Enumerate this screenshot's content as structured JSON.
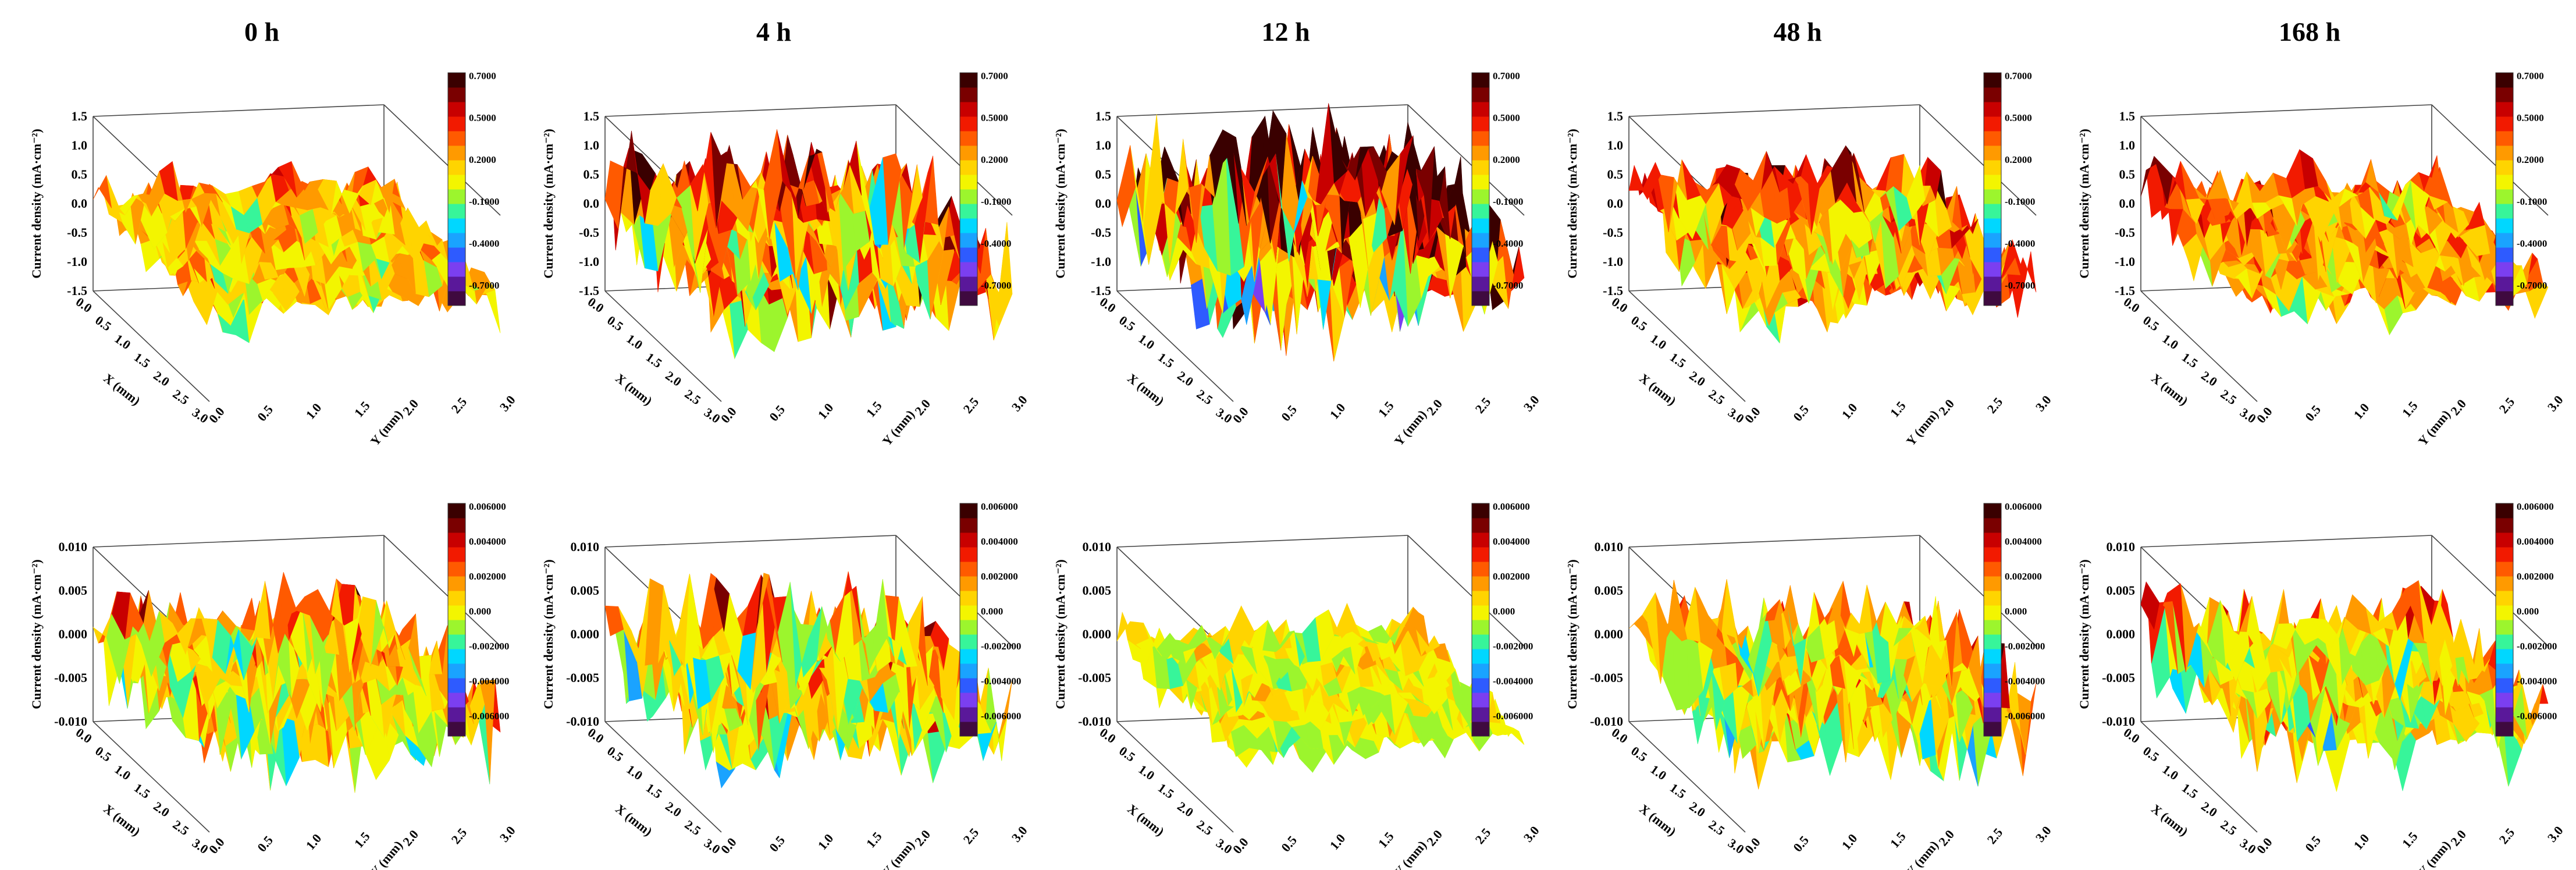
{
  "figure": {
    "titles": [
      "0 h",
      "4 h",
      "12 h",
      "48 h",
      "168 h"
    ]
  },
  "colormap": [
    "#3f0a3f",
    "#5a189a",
    "#7b3ff0",
    "#2e5bff",
    "#1aa3ff",
    "#00d7ff",
    "#37f59a",
    "#9cf52d",
    "#f3f500",
    "#ffd400",
    "#ff9a00",
    "#ff5a00",
    "#f21a00",
    "#c80000",
    "#7a0000",
    "#3a0000"
  ],
  "chart_data": [
    {
      "type": "surface3d",
      "row": 0,
      "col": 0,
      "title": "0 h",
      "xlabel": "X (mm)",
      "ylabel": "Y (mm)",
      "zlabel": "Current density (mA·cm⁻²)",
      "xlim": [
        0.0,
        3.0
      ],
      "ylim": [
        0.0,
        3.0
      ],
      "zlim": [
        -1.5,
        1.5
      ],
      "xticks": [
        "0.0",
        "0.5",
        "1.0",
        "1.5",
        "2.0",
        "2.5",
        "3.0"
      ],
      "yticks": [
        "0.0",
        "0.5",
        "1.0",
        "1.5",
        "2.0",
        "2.5",
        "3.0"
      ],
      "zticks": [
        "-1.5",
        "-1.0",
        "-0.5",
        "0.0",
        "0.5",
        "1.0",
        "1.5"
      ],
      "colorbar_ticks": [
        "0.7000",
        "0.5000",
        "0.2000",
        "-0.1000",
        "-0.4000",
        "-0.7000"
      ],
      "colorbar_range": [
        -0.85,
        0.7
      ],
      "surface_mean": 0.15,
      "surface_amplitude": 0.3,
      "seed": 11
    },
    {
      "type": "surface3d",
      "row": 0,
      "col": 1,
      "title": "4 h",
      "xlabel": "X (mm)",
      "ylabel": "Y (mm)",
      "zlabel": "Current density (mA·cm⁻²)",
      "xlim": [
        0.0,
        3.0
      ],
      "ylim": [
        0.0,
        3.0
      ],
      "zlim": [
        -1.5,
        1.5
      ],
      "xticks": [
        "0.0",
        "0.5",
        "1.0",
        "1.5",
        "2.0",
        "2.5",
        "3.0"
      ],
      "yticks": [
        "0.0",
        "0.5",
        "1.0",
        "1.5",
        "2.0",
        "2.5",
        "3.0"
      ],
      "zticks": [
        "-1.5",
        "-1.0",
        "-0.5",
        "0.0",
        "0.5",
        "1.0",
        "1.5"
      ],
      "colorbar_ticks": [
        "0.7000",
        "0.5000",
        "0.2000",
        "-0.1000",
        "-0.4000",
        "-0.7000"
      ],
      "colorbar_range": [
        -0.85,
        0.7
      ],
      "surface_mean": 0.3,
      "surface_amplitude": 0.55,
      "seed": 23
    },
    {
      "type": "surface3d",
      "row": 0,
      "col": 2,
      "title": "12 h",
      "xlabel": "X (mm)",
      "ylabel": "Y (mm)",
      "zlabel": "Current density (mA·cm⁻²)",
      "xlim": [
        0.0,
        3.0
      ],
      "ylim": [
        0.0,
        3.0
      ],
      "zlim": [
        -1.5,
        1.5
      ],
      "xticks": [
        "0.0",
        "0.5",
        "1.0",
        "1.5",
        "2.0",
        "2.5",
        "3.0"
      ],
      "yticks": [
        "0.0",
        "0.5",
        "1.0",
        "1.5",
        "2.0",
        "2.5",
        "3.0"
      ],
      "zticks": [
        "-1.5",
        "-1.0",
        "-0.5",
        "0.0",
        "0.5",
        "1.0",
        "1.5"
      ],
      "colorbar_ticks": [
        "0.7000",
        "0.5000",
        "0.2000",
        "-0.1000",
        "-0.4000",
        "-0.7000"
      ],
      "colorbar_range": [
        -0.85,
        0.7
      ],
      "surface_mean": 0.4,
      "surface_amplitude": 0.75,
      "seed": 37
    },
    {
      "type": "surface3d",
      "row": 0,
      "col": 3,
      "title": "48 h",
      "xlabel": "X (mm)",
      "ylabel": "Y (mm)",
      "zlabel": "Current density (mA·cm⁻²)",
      "xlim": [
        0.0,
        3.0
      ],
      "ylim": [
        0.0,
        3.0
      ],
      "zlim": [
        -1.5,
        1.5
      ],
      "xticks": [
        "0.0",
        "0.5",
        "1.0",
        "1.5",
        "2.0",
        "2.5",
        "3.0"
      ],
      "yticks": [
        "0.0",
        "0.5",
        "1.0",
        "1.5",
        "2.0",
        "2.5",
        "3.0"
      ],
      "zticks": [
        "-1.5",
        "-1.0",
        "-0.5",
        "0.0",
        "0.5",
        "1.0",
        "1.5"
      ],
      "colorbar_ticks": [
        "0.7000",
        "0.5000",
        "0.2000",
        "-0.1000",
        "-0.4000",
        "-0.7000"
      ],
      "colorbar_range": [
        -0.85,
        0.7
      ],
      "surface_mean": 0.25,
      "surface_amplitude": 0.4,
      "seed": 41
    },
    {
      "type": "surface3d",
      "row": 0,
      "col": 4,
      "title": "168 h",
      "xlabel": "X (mm)",
      "ylabel": "Y (mm)",
      "zlabel": "Current density (mA·cm⁻²)",
      "xlim": [
        0.0,
        3.0
      ],
      "ylim": [
        0.0,
        3.0
      ],
      "zlim": [
        -1.5,
        1.5
      ],
      "xticks": [
        "0.0",
        "0.5",
        "1.0",
        "1.5",
        "2.0",
        "2.5",
        "3.0"
      ],
      "yticks": [
        "0.0",
        "0.5",
        "1.0",
        "1.5",
        "2.0",
        "2.5",
        "3.0"
      ],
      "zticks": [
        "-1.5",
        "-1.0",
        "-0.5",
        "0.0",
        "0.5",
        "1.0",
        "1.5"
      ],
      "colorbar_ticks": [
        "0.7000",
        "0.5000",
        "0.2000",
        "-0.1000",
        "-0.4000",
        "-0.7000"
      ],
      "colorbar_range": [
        -0.85,
        0.7
      ],
      "surface_mean": 0.22,
      "surface_amplitude": 0.32,
      "seed": 53
    },
    {
      "type": "surface3d",
      "row": 1,
      "col": 0,
      "title": "",
      "xlabel": "X (mm)",
      "ylabel": "Y (mm)",
      "zlabel": "Current density (mA·cm⁻²)",
      "xlim": [
        0.0,
        3.0
      ],
      "ylim": [
        0.0,
        3.0
      ],
      "zlim": [
        -0.01,
        0.01
      ],
      "xticks": [
        "0.0",
        "0.5",
        "1.0",
        "1.5",
        "2.0",
        "2.5",
        "3.0"
      ],
      "yticks": [
        "0.0",
        "0.5",
        "1.0",
        "1.5",
        "2.0",
        "2.5",
        "3.0"
      ],
      "zticks": [
        "-0.010",
        "-0.005",
        "0.000",
        "0.005",
        "0.010"
      ],
      "colorbar_ticks": [
        "0.006000",
        "0.004000",
        "0.002000",
        "0.000",
        "-0.002000",
        "-0.004000",
        "-0.006000"
      ],
      "colorbar_range": [
        -0.0075,
        0.006
      ],
      "surface_mean": 0.0008,
      "surface_amplitude": 0.0035,
      "seed": 61
    },
    {
      "type": "surface3d",
      "row": 1,
      "col": 1,
      "title": "",
      "xlabel": "X (mm)",
      "ylabel": "Y (mm)",
      "zlabel": "Current density (mA·cm⁻²)",
      "xlim": [
        0.0,
        3.0
      ],
      "ylim": [
        0.0,
        3.0
      ],
      "zlim": [
        -0.01,
        0.01
      ],
      "xticks": [
        "0.0",
        "0.5",
        "1.0",
        "1.5",
        "2.0",
        "2.5",
        "3.0"
      ],
      "yticks": [
        "0.0",
        "0.5",
        "1.0",
        "1.5",
        "2.0",
        "2.5",
        "3.0"
      ],
      "zticks": [
        "-0.010",
        "-0.005",
        "0.000",
        "0.005",
        "0.010"
      ],
      "colorbar_ticks": [
        "0.006000",
        "0.004000",
        "0.002000",
        "0.000",
        "-0.002000",
        "-0.004000",
        "-0.006000"
      ],
      "colorbar_range": [
        -0.0075,
        0.006
      ],
      "surface_mean": 0.0008,
      "surface_amplitude": 0.0035,
      "seed": 73
    },
    {
      "type": "surface3d",
      "row": 1,
      "col": 2,
      "title": "",
      "xlabel": "X (mm)",
      "ylabel": "Y (mm)",
      "zlabel": "Current density (mA·cm⁻²)",
      "xlim": [
        0.0,
        3.0
      ],
      "ylim": [
        0.0,
        3.0
      ],
      "zlim": [
        -0.01,
        0.01
      ],
      "xticks": [
        "0.0",
        "0.5",
        "1.0",
        "1.5",
        "2.0",
        "2.5",
        "3.0"
      ],
      "yticks": [
        "0.0",
        "0.5",
        "1.0",
        "1.5",
        "2.0",
        "2.5",
        "3.0"
      ],
      "zticks": [
        "-0.010",
        "-0.005",
        "0.000",
        "0.005",
        "0.010"
      ],
      "colorbar_ticks": [
        "0.006000",
        "0.004000",
        "0.002000",
        "0.000",
        "-0.002000",
        "-0.004000",
        "-0.006000"
      ],
      "colorbar_range": [
        -0.0075,
        0.006
      ],
      "surface_mean": 0.0,
      "surface_amplitude": 0.0018,
      "seed": 89
    },
    {
      "type": "surface3d",
      "row": 1,
      "col": 3,
      "title": "",
      "xlabel": "X (mm)",
      "ylabel": "Y (mm)",
      "zlabel": "Current density (mA·cm⁻²)",
      "xlim": [
        0.0,
        3.0
      ],
      "ylim": [
        0.0,
        3.0
      ],
      "zlim": [
        -0.01,
        0.01
      ],
      "xticks": [
        "0.0",
        "0.5",
        "1.0",
        "1.5",
        "2.0",
        "2.5",
        "3.0"
      ],
      "yticks": [
        "0.0",
        "0.5",
        "1.0",
        "1.5",
        "2.0",
        "2.5",
        "3.0"
      ],
      "zticks": [
        "-0.010",
        "-0.005",
        "0.000",
        "0.005",
        "0.010"
      ],
      "colorbar_ticks": [
        "0.006000",
        "0.004000",
        "0.002000",
        "0.000",
        "-0.002000",
        "-0.004000",
        "-0.006000"
      ],
      "colorbar_range": [
        -0.0075,
        0.006
      ],
      "surface_mean": 0.0009,
      "surface_amplitude": 0.0035,
      "seed": 97
    },
    {
      "type": "surface3d",
      "row": 1,
      "col": 4,
      "title": "",
      "xlabel": "X (mm)",
      "ylabel": "Y (mm)",
      "zlabel": "Current density (mA·cm⁻²)",
      "xlim": [
        0.0,
        3.0
      ],
      "ylim": [
        0.0,
        3.0
      ],
      "zlim": [
        -0.01,
        0.01
      ],
      "xticks": [
        "0.0",
        "0.5",
        "1.0",
        "1.5",
        "2.0",
        "2.5",
        "3.0"
      ],
      "yticks": [
        "0.0",
        "0.5",
        "1.0",
        "1.5",
        "2.0",
        "2.5",
        "3.0"
      ],
      "zticks": [
        "-0.010",
        "-0.005",
        "0.000",
        "0.005",
        "0.010"
      ],
      "colorbar_ticks": [
        "0.006000",
        "0.004000",
        "0.002000",
        "0.000",
        "-0.002000",
        "-0.004000",
        "-0.006000"
      ],
      "colorbar_range": [
        -0.0075,
        0.006
      ],
      "surface_mean": 0.0008,
      "surface_amplitude": 0.0032,
      "seed": 101
    }
  ]
}
